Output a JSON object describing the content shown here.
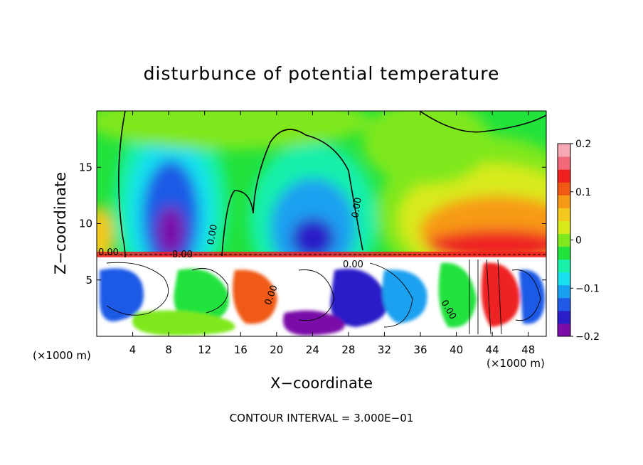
{
  "chart_data": {
    "type": "heatmap",
    "title": "disturbunce of potential temperature",
    "xlabel": "X−coordinate",
    "ylabel": "Z−coordinate",
    "x_unit_left": "(×1000 m)",
    "x_unit_right": "(×1000 m)",
    "xlim": [
      0,
      50
    ],
    "ylim": [
      0,
      20
    ],
    "x_ticks": [
      4,
      8,
      12,
      16,
      20,
      24,
      28,
      32,
      36,
      40,
      44,
      48
    ],
    "x_tick_labels": [
      "4",
      "8",
      "12",
      "16",
      "20",
      "24",
      "28",
      "32",
      "36",
      "40",
      "44",
      "48"
    ],
    "y_ticks": [
      5,
      10,
      15
    ],
    "y_tick_labels": [
      "5",
      "10",
      "15"
    ],
    "colorbar": {
      "range": [
        -0.2,
        0.2
      ],
      "tick_values": [
        0.2,
        0.1,
        0,
        -0.1,
        -0.2
      ],
      "tick_labels": [
        "0.2",
        "0.1",
        "0",
        "−0.1",
        "−0.2"
      ],
      "colors": [
        "#7a0da8",
        "#2b1ec8",
        "#1e5ae6",
        "#1aa0f0",
        "#18e0ee",
        "#19f0aa",
        "#22e23c",
        "#7fe81e",
        "#d8ea1c",
        "#f4c81c",
        "#f79a18",
        "#f05a14",
        "#ee2020",
        "#f26a7a",
        "#f8a8b4"
      ]
    },
    "contour_labels": [
      "0.00",
      "0.00",
      "0.00",
      "0.00",
      "0.00",
      "0.00",
      "0.00"
    ],
    "contour_interval_text": "CONTOUR INTERVAL = 3.000E−01",
    "fields": {
      "upper_layer": "warm positive anomaly in lower right, cool negative anomaly columns near x=8 and x=24",
      "lower_layer": "turbulent mixed layer below z≈7.5 with saturated values"
    }
  }
}
